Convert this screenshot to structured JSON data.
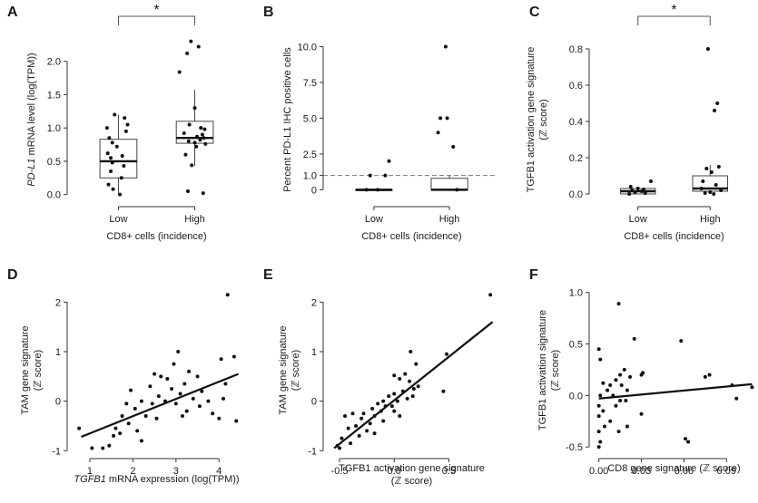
{
  "chart_data": [
    {
      "id": "A",
      "letter": "A",
      "type": "box",
      "ylabel_italic": "PD-L1",
      "ylabel_rest": " mRNA level (log(TPM))",
      "xlabel": "CD8+ cells (incidence)",
      "categories": [
        "Low",
        "High"
      ],
      "ylim": [
        -0.1,
        2.35
      ],
      "yticks": [
        0.0,
        0.5,
        1.0,
        1.5,
        2.0
      ],
      "ytick_labels": [
        "0.0",
        "0.5",
        "1.0",
        "1.5",
        "2.0"
      ],
      "significance": "*",
      "boxes": [
        {
          "q1": 0.25,
          "median": 0.5,
          "q3": 0.83,
          "wlo": 0.0,
          "whi": 1.2
        },
        {
          "q1": 0.77,
          "median": 0.85,
          "q3": 1.1,
          "wlo": 0.43,
          "whi": 1.57
        }
      ],
      "points": [
        [
          1.8,
          0.84,
          1.84
        ],
        [
          0.95,
          0.79,
          1.2
        ],
        [
          1.08,
          0.07,
          1.15
        ],
        [
          1.12,
          0.08,
          1.05
        ],
        [
          0.85,
          0.02,
          1.0
        ],
        [
          1.1,
          0.1,
          0.95
        ],
        [
          0.88,
          0.18,
          0.85
        ],
        [
          0.92,
          0.03,
          0.78
        ],
        [
          0.98,
          0.12,
          0.72
        ],
        [
          0.86,
          0.05,
          0.62
        ],
        [
          1.05,
          0.05,
          0.58
        ],
        [
          0.9,
          -0.1,
          0.55
        ],
        [
          0.92,
          0.0,
          0.48
        ],
        [
          1.07,
          -0.05,
          0.43
        ],
        [
          0.9,
          0.04,
          0.35
        ],
        [
          1.04,
          0.1,
          0.25
        ],
        [
          0.87,
          0.02,
          0.15
        ],
        [
          0.93,
          0.0,
          0.08
        ],
        [
          1.02,
          0.03,
          0.0
        ],
        [
          1.95,
          0.02,
          2.3
        ],
        [
          2.05,
          0.0,
          2.22
        ],
        [
          1.9,
          -0.08,
          2.12
        ],
        [
          2.0,
          0.18,
          1.3
        ],
        [
          1.93,
          0.09,
          1.05
        ],
        [
          2.08,
          0.07,
          1.0
        ],
        [
          2.13,
          0.07,
          0.98
        ],
        [
          1.86,
          0.02,
          0.92
        ],
        [
          2.1,
          0.09,
          0.9
        ],
        [
          2.03,
          0.04,
          0.87
        ],
        [
          2.12,
          0.05,
          0.85
        ],
        [
          2.07,
          0.09,
          0.82
        ],
        [
          1.92,
          0.1,
          0.8
        ],
        [
          2.0,
          0.05,
          0.78
        ],
        [
          2.14,
          0.06,
          0.76
        ],
        [
          2.02,
          0.09,
          0.72
        ],
        [
          1.88,
          0.15,
          0.6
        ],
        [
          1.96,
          0.03,
          0.44
        ],
        [
          1.91,
          0.05,
          0.05
        ],
        [
          2.11,
          0.04,
          0.02
        ]
      ]
    },
    {
      "id": "B",
      "letter": "B",
      "type": "box",
      "ylabel": "Percent PD-L1 IHC positive cells",
      "xlabel": "CD8+ cells (incidence)",
      "categories": [
        "Low",
        "High"
      ],
      "ylim": [
        -0.8,
        10.6
      ],
      "yticks": [
        0,
        1,
        2.5,
        5.0,
        7.5,
        10.0
      ],
      "ytick_labels": [
        "0",
        "1.0",
        "2.5",
        "5.0",
        "7.5",
        "10.0"
      ],
      "threshold_line": 1.0,
      "boxes": [
        {
          "q1": 0.0,
          "median": 0.0,
          "q3": 0.0,
          "wlo": 0.0,
          "whi": 0.0
        },
        {
          "q1": 0.0,
          "median": 0.0,
          "q3": 0.8,
          "wlo": 0.0,
          "whi": 1.0
        }
      ],
      "points": [
        [
          1.2,
          0.02,
          2.0
        ],
        [
          0.95,
          0.05,
          1.0
        ],
        [
          1.15,
          0.07,
          1.0
        ],
        [
          0.9,
          0.0,
          0.0
        ],
        [
          1.05,
          0.0,
          0.0
        ],
        [
          1.95,
          0.05,
          10.0
        ],
        [
          1.88,
          0.05,
          5.0
        ],
        [
          1.97,
          0.1,
          5.0
        ],
        [
          1.85,
          0.08,
          4.0
        ],
        [
          2.05,
          0.05,
          3.0
        ],
        [
          2.1,
          0.0,
          0.0
        ]
      ]
    },
    {
      "id": "C",
      "letter": "C",
      "type": "box",
      "ylabel": "TGFB1 activation gene signature (ℤ score)",
      "ylabel_line1": "TGFB1 activation gene signature",
      "ylabel_line2": "(ℤ score)",
      "xlabel": "CD8+ cells (incidence)",
      "categories": [
        "Low",
        "High"
      ],
      "ylim": [
        -0.04,
        0.86
      ],
      "yticks": [
        0.0,
        0.2,
        0.4,
        0.6,
        0.8
      ],
      "ytick_labels": [
        "0.0",
        "0.2",
        "0.4",
        "0.6",
        "0.8"
      ],
      "significance": "*",
      "boxes": [
        {
          "q1": 0.0,
          "median": 0.015,
          "q3": 0.03,
          "wlo": 0.0,
          "whi": 0.04
        },
        {
          "q1": 0.015,
          "median": 0.03,
          "q3": 0.1,
          "wlo": 0.0,
          "whi": 0.16
        }
      ],
      "points": [
        [
          1.18,
          0.07
        ],
        [
          0.9,
          0.04
        ],
        [
          1.0,
          0.03
        ],
        [
          1.08,
          0.025
        ],
        [
          0.92,
          0.02
        ],
        [
          1.05,
          0.015
        ],
        [
          0.96,
          0.01
        ],
        [
          1.1,
          0.005
        ],
        [
          0.88,
          0.0
        ],
        [
          1.97,
          0.8
        ],
        [
          2.1,
          0.5
        ],
        [
          2.06,
          0.46
        ],
        [
          2.12,
          0.15
        ],
        [
          1.95,
          0.14
        ],
        [
          2.02,
          0.12
        ],
        [
          1.9,
          0.07
        ],
        [
          2.08,
          0.05
        ],
        [
          1.88,
          0.03
        ],
        [
          2.15,
          0.02
        ],
        [
          2.0,
          0.01
        ],
        [
          1.93,
          0.005
        ],
        [
          2.05,
          0.0
        ]
      ]
    },
    {
      "id": "D",
      "letter": "D",
      "type": "scatter",
      "ylabel_line1": "TAM gene signature",
      "ylabel_line2": "(ℤ score)",
      "xlabel_italic": "TGFB1",
      "xlabel_rest": " mRNA expression (log(TPM))",
      "xlim": [
        0.6,
        4.5
      ],
      "ylim": [
        -1.05,
        2.3
      ],
      "xticks": [
        1,
        2,
        3,
        4
      ],
      "xtick_labels": [
        "1",
        "2",
        "3",
        "4"
      ],
      "yticks": [
        -1,
        0,
        1,
        2
      ],
      "ytick_labels": [
        "-1",
        "0",
        "1",
        "2"
      ],
      "fit": {
        "x": [
          0.8,
          4.45
        ],
        "y": [
          -0.72,
          0.55
        ]
      },
      "points": [
        [
          4.2,
          2.15
        ],
        [
          3.05,
          1.0
        ],
        [
          4.35,
          0.9
        ],
        [
          4.05,
          0.85
        ],
        [
          2.95,
          0.75
        ],
        [
          3.3,
          0.6
        ],
        [
          2.5,
          0.55
        ],
        [
          2.65,
          0.5
        ],
        [
          3.5,
          0.5
        ],
        [
          2.8,
          0.45
        ],
        [
          3.2,
          0.35
        ],
        [
          4.15,
          0.35
        ],
        [
          2.4,
          0.3
        ],
        [
          2.9,
          0.25
        ],
        [
          3.6,
          0.2
        ],
        [
          1.95,
          0.22
        ],
        [
          3.1,
          0.15
        ],
        [
          2.6,
          0.1
        ],
        [
          3.4,
          0.05
        ],
        [
          2.2,
          0.0
        ],
        [
          3.75,
          0.0
        ],
        [
          2.75,
          0.0
        ],
        [
          4.1,
          0.05
        ],
        [
          3.0,
          -0.05
        ],
        [
          1.85,
          -0.05
        ],
        [
          2.45,
          -0.05
        ],
        [
          3.55,
          -0.1
        ],
        [
          2.05,
          -0.15
        ],
        [
          3.25,
          -0.2
        ],
        [
          3.85,
          -0.25
        ],
        [
          1.75,
          -0.3
        ],
        [
          2.3,
          -0.3
        ],
        [
          3.15,
          -0.3
        ],
        [
          4.0,
          -0.35
        ],
        [
          4.4,
          -0.4
        ],
        [
          2.55,
          -0.35
        ],
        [
          1.9,
          -0.45
        ],
        [
          1.6,
          -0.55
        ],
        [
          2.1,
          -0.6
        ],
        [
          1.7,
          -0.65
        ],
        [
          2.2,
          -0.8
        ],
        [
          1.55,
          -0.7
        ],
        [
          0.75,
          -0.55
        ],
        [
          1.3,
          -0.95
        ],
        [
          1.45,
          -0.9
        ],
        [
          1.05,
          -0.95
        ]
      ]
    },
    {
      "id": "E",
      "letter": "E",
      "type": "scatter",
      "ylabel_line1": "TAM gene signature",
      "ylabel_line2": "(ℤ score)",
      "xlabel_line1": "TGFB1 activation gene signature",
      "xlabel_line2": "(ℤ score)",
      "xlim": [
        -0.6,
        0.92
      ],
      "ylim": [
        -1.05,
        2.3
      ],
      "xticks": [
        -0.5,
        0.0,
        0.5
      ],
      "xtick_labels": [
        "-0.5",
        "0.0",
        "0.5"
      ],
      "yticks": [
        -1,
        0,
        1,
        2
      ],
      "ytick_labels": [
        "-1",
        "0",
        "1",
        "2"
      ],
      "fit": {
        "x": [
          -0.55,
          0.9
        ],
        "y": [
          -0.95,
          1.6
        ]
      },
      "points": [
        [
          0.88,
          2.15
        ],
        [
          0.48,
          0.95
        ],
        [
          0.15,
          1.0
        ],
        [
          0.2,
          0.75
        ],
        [
          0.1,
          0.55
        ],
        [
          0.0,
          0.52
        ],
        [
          0.05,
          0.45
        ],
        [
          0.14,
          0.4
        ],
        [
          0.18,
          0.25
        ],
        [
          0.08,
          0.2
        ],
        [
          0.0,
          0.15
        ],
        [
          -0.05,
          0.1
        ],
        [
          0.12,
          0.05
        ],
        [
          0.03,
          0.0
        ],
        [
          -0.1,
          0.0
        ],
        [
          0.17,
          0.1
        ],
        [
          -0.02,
          -0.1
        ],
        [
          -0.15,
          -0.05
        ],
        [
          -0.08,
          -0.1
        ],
        [
          -0.2,
          -0.15
        ],
        [
          0.0,
          -0.2
        ],
        [
          -0.12,
          -0.2
        ],
        [
          -0.28,
          -0.25
        ],
        [
          -0.18,
          -0.3
        ],
        [
          -0.38,
          -0.25
        ],
        [
          -0.3,
          -0.35
        ],
        [
          -0.22,
          -0.45
        ],
        [
          -0.35,
          -0.5
        ],
        [
          -0.42,
          -0.55
        ],
        [
          -0.25,
          -0.6
        ],
        [
          -0.32,
          -0.7
        ],
        [
          -0.48,
          -0.75
        ],
        [
          -0.4,
          -0.85
        ],
        [
          -0.52,
          -0.9
        ],
        [
          -0.5,
          -0.95
        ],
        [
          -0.18,
          -0.65
        ],
        [
          -0.1,
          -0.4
        ],
        [
          0.22,
          0.3
        ],
        [
          0.45,
          0.2
        ],
        [
          0.05,
          -0.3
        ],
        [
          -0.45,
          -0.3
        ]
      ]
    },
    {
      "id": "F",
      "letter": "F",
      "type": "scatter",
      "ylabel_line1": "TGFB1 activation signature",
      "ylabel_line2": "(ℤ score)",
      "xlabel": "CD8 gene signature (ℤ score)",
      "xlim": [
        -0.003,
        0.109
      ],
      "ylim": [
        -0.56,
        1.05
      ],
      "xticks": [
        0.0,
        0.03,
        0.06,
        0.09
      ],
      "xtick_labels": [
        "0.00",
        "0.03",
        "0.06",
        "0.09"
      ],
      "yticks": [
        -0.5,
        0.0,
        0.5,
        1.0
      ],
      "ytick_labels": [
        "-0.5",
        "0.0",
        "0.5",
        "1.0"
      ],
      "fit": {
        "x": [
          0.0,
          0.108
        ],
        "y": [
          -0.03,
          0.11
        ]
      },
      "points": [
        [
          0.014,
          0.89
        ],
        [
          0.025,
          0.55
        ],
        [
          0.058,
          0.53
        ],
        [
          0.0,
          0.45
        ],
        [
          0.001,
          0.35
        ],
        [
          0.018,
          0.25
        ],
        [
          0.015,
          0.2
        ],
        [
          0.031,
          0.22
        ],
        [
          0.012,
          0.15
        ],
        [
          0.008,
          0.1
        ],
        [
          0.003,
          0.12
        ],
        [
          0.03,
          0.2
        ],
        [
          0.078,
          0.2
        ],
        [
          0.075,
          0.18
        ],
        [
          0.094,
          0.1
        ],
        [
          0.108,
          0.08
        ],
        [
          0.02,
          0.05
        ],
        [
          0.006,
          0.05
        ],
        [
          0.01,
          0.0
        ],
        [
          0.001,
          0.0
        ],
        [
          0.015,
          -0.05
        ],
        [
          0.0,
          -0.1
        ],
        [
          0.019,
          -0.05
        ],
        [
          0.012,
          -0.1
        ],
        [
          0.003,
          -0.15
        ],
        [
          0.0,
          -0.2
        ],
        [
          0.03,
          -0.18
        ],
        [
          0.008,
          -0.25
        ],
        [
          0.014,
          -0.35
        ],
        [
          0.004,
          -0.3
        ],
        [
          0.02,
          -0.3
        ],
        [
          0.0,
          -0.35
        ],
        [
          0.001,
          -0.45
        ],
        [
          0.061,
          -0.42
        ],
        [
          0.063,
          -0.45
        ],
        [
          0.0,
          -0.5
        ],
        [
          0.097,
          -0.03
        ],
        [
          0.016,
          0.1
        ],
        [
          0.022,
          0.18
        ]
      ]
    }
  ]
}
